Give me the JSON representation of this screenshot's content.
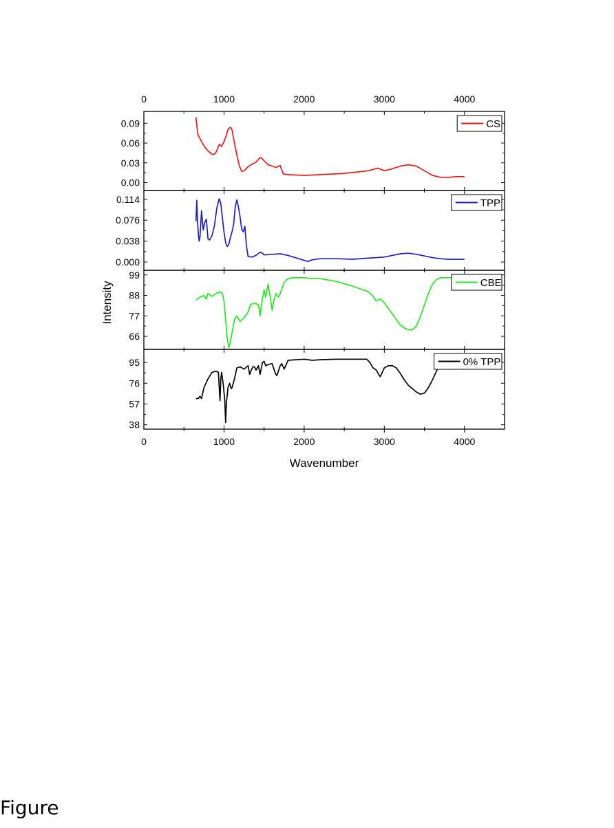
{
  "caption": "Figure",
  "chart_data": {
    "type": "line",
    "xlabel": "Wavenumber",
    "ylabel": "Intensity",
    "xlim": [
      0,
      4500
    ],
    "x_ticks": [
      0,
      1000,
      2000,
      3000,
      4000
    ],
    "x_tick_labels": [
      "0",
      "1000",
      "2000",
      "3000",
      "4000"
    ],
    "top_axis_tick_labels": [
      "0",
      "1000",
      "2000",
      "3000",
      "4000"
    ],
    "legend_position": "top-right",
    "panels": [
      {
        "legend": "CS",
        "color": "#e8191b",
        "ylim": [
          -0.012,
          0.108
        ],
        "y_ticks": [
          0.0,
          0.03,
          0.06,
          0.09
        ],
        "y_tick_labels": [
          "0.00",
          "0.03",
          "0.06",
          "0.09"
        ],
        "x": [
          650,
          660,
          670,
          680,
          700,
          730,
          760,
          800,
          850,
          880,
          900,
          940,
          970,
          1000,
          1030,
          1050,
          1080,
          1100,
          1130,
          1160,
          1190,
          1220,
          1250,
          1300,
          1350,
          1400,
          1450,
          1470,
          1500,
          1550,
          1600,
          1650,
          1700,
          1740,
          1800,
          2000,
          2200,
          2500,
          2800,
          2920,
          3000,
          3100,
          3200,
          3300,
          3400,
          3500,
          3600,
          3700,
          3800,
          3900,
          4000
        ],
        "y": [
          0.099,
          0.088,
          0.076,
          0.071,
          0.067,
          0.06,
          0.054,
          0.048,
          0.043,
          0.043,
          0.046,
          0.058,
          0.055,
          0.062,
          0.072,
          0.081,
          0.084,
          0.08,
          0.06,
          0.042,
          0.026,
          0.017,
          0.018,
          0.024,
          0.028,
          0.031,
          0.038,
          0.037,
          0.033,
          0.027,
          0.025,
          0.023,
          0.026,
          0.013,
          0.012,
          0.011,
          0.012,
          0.014,
          0.018,
          0.022,
          0.018,
          0.021,
          0.025,
          0.027,
          0.025,
          0.018,
          0.011,
          0.008,
          0.008,
          0.009,
          0.009
        ]
      },
      {
        "legend": "TPP",
        "color": "#1d1ec4",
        "ylim": [
          -0.015,
          0.13
        ],
        "y_ticks": [
          0.0,
          0.038,
          0.076,
          0.114
        ],
        "y_tick_labels": [
          "0.000",
          "0.038",
          "0.076",
          "0.114"
        ],
        "x": [
          650,
          660,
          670,
          680,
          690,
          700,
          720,
          740,
          760,
          780,
          800,
          820,
          850,
          880,
          910,
          940,
          960,
          980,
          1000,
          1020,
          1040,
          1060,
          1080,
          1100,
          1120,
          1140,
          1160,
          1180,
          1200,
          1220,
          1240,
          1260,
          1280,
          1300,
          1350,
          1400,
          1450,
          1480,
          1500,
          1600,
          1700,
          1800,
          2000,
          2050,
          2100,
          2200,
          2400,
          2600,
          2800,
          3000,
          3200,
          3300,
          3400,
          3500,
          3600,
          3700,
          3800,
          3900,
          4000
        ],
        "y": [
          0.074,
          0.112,
          0.072,
          0.05,
          0.038,
          0.045,
          0.093,
          0.058,
          0.072,
          0.078,
          0.042,
          0.04,
          0.048,
          0.066,
          0.098,
          0.115,
          0.106,
          0.08,
          0.055,
          0.035,
          0.028,
          0.032,
          0.045,
          0.055,
          0.068,
          0.1,
          0.113,
          0.1,
          0.083,
          0.06,
          0.055,
          0.065,
          0.03,
          0.01,
          0.009,
          0.012,
          0.018,
          0.016,
          0.013,
          0.014,
          0.015,
          0.012,
          0.003,
          0.001,
          0.004,
          0.006,
          0.006,
          0.005,
          0.007,
          0.009,
          0.015,
          0.016,
          0.014,
          0.011,
          0.008,
          0.006,
          0.005,
          0.005,
          0.005
        ]
      },
      {
        "legend": "CBE",
        "color": "#22e81f",
        "ylim": [
          59,
          101.5
        ],
        "y_ticks": [
          66,
          77,
          88,
          99
        ],
        "y_tick_labels": [
          "66",
          "77",
          "88",
          "99"
        ],
        "x": [
          650,
          700,
          750,
          780,
          800,
          850,
          900,
          950,
          980,
          1000,
          1020,
          1040,
          1060,
          1080,
          1100,
          1130,
          1160,
          1200,
          1250,
          1300,
          1330,
          1380,
          1430,
          1450,
          1470,
          1500,
          1520,
          1550,
          1580,
          1600,
          1620,
          1650,
          1680,
          1700,
          1750,
          1800,
          1850,
          1900,
          2000,
          2100,
          2200,
          2400,
          2600,
          2800,
          2850,
          2900,
          2950,
          3000,
          3050,
          3100,
          3150,
          3200,
          3250,
          3300,
          3350,
          3400,
          3450,
          3500,
          3550,
          3600,
          3650,
          3700,
          3800,
          3900,
          4000
        ],
        "y": [
          85.5,
          87,
          88,
          86,
          89,
          87.5,
          89,
          90,
          89,
          85,
          75,
          65,
          60,
          63,
          68,
          75,
          77,
          74,
          76,
          79,
          83,
          84,
          83,
          77,
          84,
          91,
          87,
          94,
          86,
          80,
          85,
          89,
          87,
          89,
          95,
          97,
          97.5,
          97.5,
          97.5,
          97,
          97,
          95.5,
          93,
          90,
          88,
          85,
          86,
          84,
          81,
          78,
          75,
          72,
          70.5,
          69.5,
          69.5,
          71.5,
          76.5,
          83,
          89,
          94,
          96.5,
          97.5,
          97.5,
          97.5,
          97.5
        ]
      },
      {
        "legend": "0% TPP",
        "color": "#000000",
        "ylim": [
          34,
          107
        ],
        "y_ticks": [
          38,
          57,
          76,
          95
        ],
        "y_tick_labels": [
          "38",
          "57",
          "76",
          "95"
        ],
        "x": [
          650,
          680,
          700,
          720,
          750,
          800,
          850,
          900,
          930,
          950,
          960,
          970,
          990,
          1010,
          1020,
          1030,
          1050,
          1070,
          1090,
          1100,
          1130,
          1160,
          1200,
          1250,
          1300,
          1320,
          1340,
          1360,
          1380,
          1400,
          1430,
          1450,
          1480,
          1500,
          1520,
          1550,
          1600,
          1640,
          1660,
          1700,
          1720,
          1750,
          1800,
          2000,
          2100,
          2200,
          2400,
          2600,
          2780,
          2820,
          2860,
          2900,
          2930,
          2950,
          3000,
          3050,
          3100,
          3150,
          3200,
          3250,
          3300,
          3350,
          3400,
          3450,
          3500,
          3550,
          3600,
          3650,
          3700,
          3750
        ],
        "y": [
          62,
          62,
          64,
          62,
          72,
          80,
          86,
          87,
          86,
          60,
          80,
          86,
          75,
          60,
          40,
          58,
          72,
          76,
          71,
          72,
          80,
          90,
          91,
          89,
          92,
          84,
          88,
          91,
          91,
          88,
          92,
          84,
          95,
          96,
          92,
          93,
          94,
          85,
          83,
          92,
          94,
          89,
          97,
          98,
          97,
          97.5,
          98,
          98,
          98,
          95,
          90,
          88,
          84,
          82,
          90,
          92,
          92,
          90,
          85,
          79,
          74,
          71,
          68,
          66,
          67,
          72,
          79,
          87,
          94,
          98
        ]
      }
    ]
  }
}
